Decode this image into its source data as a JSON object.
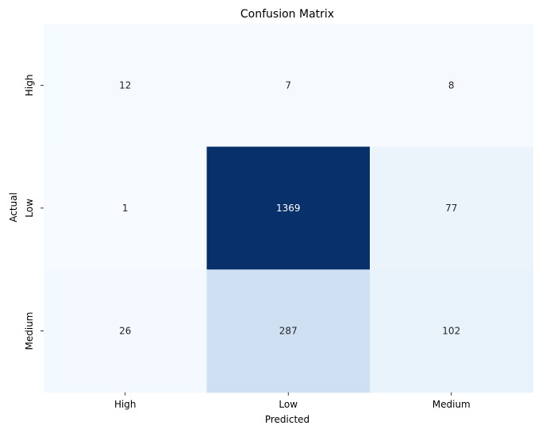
{
  "chart_data": {
    "type": "heatmap",
    "title": "Confusion Matrix",
    "xlabel": "Predicted",
    "ylabel": "Actual",
    "x_categories": [
      "High",
      "Low",
      "Medium"
    ],
    "y_categories": [
      "High",
      "Low",
      "Medium"
    ],
    "values": [
      [
        12,
        7,
        8
      ],
      [
        1,
        1369,
        77
      ],
      [
        26,
        287,
        102
      ]
    ],
    "colormap": "Blues",
    "colorbar": false,
    "annotations": true,
    "grid": false
  }
}
